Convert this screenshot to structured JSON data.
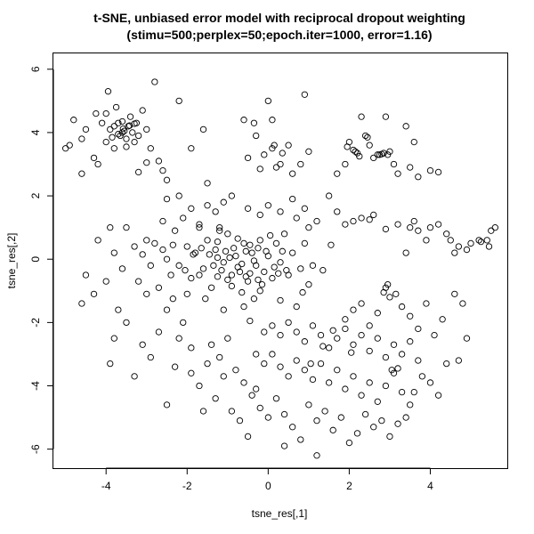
{
  "chart_data": {
    "type": "scatter",
    "title": "t-SNE, unbiased error model with reciprocal dropout weighting",
    "subtitle": "(stimu=500;perplex=50;epoch.iter=1000, error=1.16)",
    "xlabel": "tsne_res[,1]",
    "ylabel": "tsne_res[,2]",
    "xlim": [
      -5.3,
      5.9
    ],
    "ylim": [
      -6.6,
      6.5
    ],
    "xticks": [
      -4,
      -2,
      0,
      2,
      4
    ],
    "yticks": [
      -6,
      -4,
      -2,
      0,
      2,
      4,
      6
    ],
    "xtick_labels": [
      "-4",
      "-2",
      "0",
      "2",
      "4"
    ],
    "ytick_labels": [
      "-6",
      "-4",
      "-2",
      "0",
      "2",
      "4",
      "6"
    ],
    "grid": false,
    "marker": "open-circle",
    "marker_color": "#000000",
    "points": [
      [
        -4.8,
        4.4
      ],
      [
        -4.6,
        3.8
      ],
      [
        -4.5,
        4.1
      ],
      [
        -4.3,
        3.2
      ],
      [
        -4.25,
        4.6
      ],
      [
        -4.1,
        4.3
      ],
      [
        -4.0,
        3.7
      ],
      [
        -3.95,
        5.3
      ],
      [
        -3.9,
        4.1
      ],
      [
        -3.8,
        3.5
      ],
      [
        -3.75,
        4.8
      ],
      [
        -3.7,
        4.3
      ],
      [
        -3.65,
        3.9
      ],
      [
        -3.6,
        4.0
      ],
      [
        -3.55,
        4.05
      ],
      [
        -3.5,
        3.8
      ],
      [
        -3.45,
        4.2
      ],
      [
        -3.4,
        4.5
      ],
      [
        -3.35,
        4.0
      ],
      [
        -3.3,
        3.7
      ],
      [
        -3.25,
        4.3
      ],
      [
        -3.2,
        3.9
      ],
      [
        -3.1,
        4.7
      ],
      [
        -3.0,
        4.1
      ],
      [
        -2.9,
        3.5
      ],
      [
        -2.8,
        5.6
      ],
      [
        -2.7,
        3.1
      ],
      [
        -2.6,
        2.8
      ],
      [
        -3.0,
        3.05
      ],
      [
        -3.5,
        3.55
      ],
      [
        -4.2,
        3.0
      ],
      [
        -4.0,
        4.6
      ],
      [
        -4.6,
        2.7
      ],
      [
        -3.8,
        4.2
      ],
      [
        -3.6,
        4.35
      ],
      [
        -3.85,
        3.85
      ],
      [
        -3.7,
        3.95
      ],
      [
        -3.58,
        4.12
      ],
      [
        -3.42,
        4.22
      ],
      [
        -3.3,
        4.28
      ],
      [
        -5.0,
        3.5
      ],
      [
        -4.9,
        3.6
      ],
      [
        -2.5,
        2.5
      ],
      [
        -1.9,
        3.5
      ],
      [
        -1.6,
        4.1
      ],
      [
        -1.5,
        2.4
      ],
      [
        -2.2,
        5.0
      ],
      [
        -3.2,
        2.75
      ],
      [
        -0.6,
        4.4
      ],
      [
        -0.3,
        3.9
      ],
      [
        0.0,
        5.0
      ],
      [
        0.1,
        4.4
      ],
      [
        0.15,
        3.6
      ],
      [
        0.3,
        3.0
      ],
      [
        0.5,
        3.6
      ],
      [
        -0.1,
        3.3
      ],
      [
        0.2,
        2.9
      ],
      [
        0.6,
        2.7
      ],
      [
        0.9,
        5.2
      ],
      [
        1.0,
        3.4
      ],
      [
        0.8,
        3.0
      ],
      [
        -0.5,
        3.2
      ],
      [
        -0.2,
        2.85
      ],
      [
        0.35,
        3.35
      ],
      [
        0.1,
        3.5
      ],
      [
        -0.35,
        4.3
      ],
      [
        1.7,
        2.7
      ],
      [
        1.9,
        3.0
      ],
      [
        2.0,
        3.7
      ],
      [
        2.1,
        3.45
      ],
      [
        2.2,
        3.35
      ],
      [
        2.3,
        4.5
      ],
      [
        2.4,
        3.9
      ],
      [
        2.5,
        3.6
      ],
      [
        2.6,
        3.2
      ],
      [
        2.7,
        3.3
      ],
      [
        2.75,
        3.3
      ],
      [
        2.85,
        3.35
      ],
      [
        2.9,
        4.5
      ],
      [
        3.0,
        3.4
      ],
      [
        3.1,
        3.0
      ],
      [
        3.2,
        2.7
      ],
      [
        3.4,
        4.2
      ],
      [
        3.6,
        3.7
      ],
      [
        3.5,
        2.9
      ],
      [
        3.7,
        2.6
      ],
      [
        4.0,
        2.8
      ],
      [
        4.2,
        2.75
      ],
      [
        2.15,
        3.4
      ],
      [
        1.95,
        3.55
      ],
      [
        2.45,
        3.85
      ],
      [
        2.8,
        3.32
      ],
      [
        2.95,
        3.3
      ],
      [
        2.25,
        3.25
      ],
      [
        -4.2,
        0.6
      ],
      [
        -4.0,
        -0.7
      ],
      [
        -3.8,
        0.2
      ],
      [
        -3.6,
        -0.3
      ],
      [
        -3.5,
        1.0
      ],
      [
        -3.3,
        0.4
      ],
      [
        -3.2,
        -0.7
      ],
      [
        -3.1,
        0.15
      ],
      [
        -3.0,
        0.6
      ],
      [
        -2.9,
        -0.2
      ],
      [
        -2.8,
        0.5
      ],
      [
        -2.7,
        -0.9
      ],
      [
        -2.6,
        1.2
      ],
      [
        -2.5,
        0.0
      ],
      [
        -2.4,
        -0.5
      ],
      [
        -2.3,
        0.9
      ],
      [
        -2.2,
        -0.2
      ],
      [
        -2.1,
        1.3
      ],
      [
        -2.0,
        0.4
      ],
      [
        -1.9,
        -0.6
      ],
      [
        -1.8,
        0.2
      ],
      [
        -1.7,
        1.1
      ],
      [
        -1.6,
        -0.3
      ],
      [
        -1.5,
        0.6
      ],
      [
        -1.4,
        -0.9
      ],
      [
        -1.3,
        0.3
      ],
      [
        -1.2,
        1.0
      ],
      [
        -1.1,
        -0.1
      ],
      [
        -1.0,
        0.8
      ],
      [
        -0.9,
        -0.5
      ],
      [
        -0.8,
        0.1
      ],
      [
        -0.7,
        -0.4
      ],
      [
        -0.6,
        0.5
      ],
      [
        -0.5,
        -0.7
      ],
      [
        -0.4,
        0.2
      ],
      [
        -0.3,
        -0.2
      ],
      [
        -0.2,
        0.6
      ],
      [
        -0.1,
        -0.4
      ],
      [
        0.0,
        0.1
      ],
      [
        0.1,
        -0.6
      ],
      [
        0.2,
        0.5
      ],
      [
        0.3,
        -0.1
      ],
      [
        0.4,
        0.8
      ],
      [
        0.5,
        -0.5
      ],
      [
        0.6,
        0.2
      ],
      [
        0.7,
        1.3
      ],
      [
        0.8,
        -0.3
      ],
      [
        0.9,
        0.5
      ],
      [
        1.0,
        1.0
      ],
      [
        1.1,
        -0.2
      ],
      [
        -1.35,
        -0.2
      ],
      [
        -1.0,
        -0.65
      ],
      [
        -0.9,
        -0.85
      ],
      [
        -1.25,
        0.55
      ],
      [
        -0.75,
        -0.25
      ],
      [
        -0.55,
        0.25
      ],
      [
        -0.45,
        -0.45
      ],
      [
        -0.25,
        0.35
      ],
      [
        -0.15,
        -0.8
      ],
      [
        0.05,
        0.75
      ],
      [
        -1.9,
        1.6
      ],
      [
        -1.5,
        1.7
      ],
      [
        -1.3,
        1.5
      ],
      [
        -1.1,
        1.8
      ],
      [
        -0.9,
        2.0
      ],
      [
        -0.5,
        1.6
      ],
      [
        -0.2,
        1.4
      ],
      [
        0.0,
        1.7
      ],
      [
        0.3,
        1.5
      ],
      [
        0.6,
        1.9
      ],
      [
        0.9,
        1.6
      ],
      [
        1.2,
        1.2
      ],
      [
        1.5,
        2.0
      ],
      [
        1.7,
        1.5
      ],
      [
        1.9,
        1.1
      ],
      [
        2.1,
        1.2
      ],
      [
        2.3,
        1.3
      ],
      [
        2.5,
        1.25
      ],
      [
        2.6,
        1.4
      ],
      [
        2.9,
        0.95
      ],
      [
        -2.5,
        1.9
      ],
      [
        -2.2,
        2.0
      ],
      [
        -1.7,
        1.0
      ],
      [
        -1.2,
        0.9
      ],
      [
        -3.8,
        -2.5
      ],
      [
        -4.3,
        -1.1
      ],
      [
        -4.6,
        -1.4
      ],
      [
        -3.7,
        -1.6
      ],
      [
        -4.5,
        -0.5
      ],
      [
        -3.9,
        1.0
      ],
      [
        -3.0,
        -1.1
      ],
      [
        -2.5,
        -1.6
      ],
      [
        -2.0,
        -1.1
      ],
      [
        -1.7,
        -0.5
      ],
      [
        -1.1,
        -1.6
      ],
      [
        -0.6,
        -1.5
      ],
      [
        -0.2,
        -1.0
      ],
      [
        0.3,
        -1.3
      ],
      [
        0.7,
        -1.5
      ],
      [
        1.0,
        -0.8
      ],
      [
        3.2,
        1.1
      ],
      [
        3.5,
        1.0
      ],
      [
        3.7,
        0.9
      ],
      [
        4.0,
        1.0
      ],
      [
        4.2,
        1.1
      ],
      [
        4.5,
        0.6
      ],
      [
        4.7,
        0.4
      ],
      [
        4.9,
        0.3
      ],
      [
        5.0,
        0.5
      ],
      [
        5.2,
        0.6
      ],
      [
        5.4,
        0.6
      ],
      [
        5.5,
        0.9
      ],
      [
        5.6,
        1.0
      ],
      [
        4.4,
        0.8
      ],
      [
        3.9,
        0.6
      ],
      [
        4.6,
        0.2
      ],
      [
        3.4,
        0.2
      ],
      [
        5.25,
        0.55
      ],
      [
        5.45,
        0.4
      ],
      [
        3.6,
        1.2
      ],
      [
        -0.1,
        -2.3
      ],
      [
        0.1,
        -2.1
      ],
      [
        0.3,
        -2.4
      ],
      [
        0.5,
        -2.0
      ],
      [
        0.7,
        -2.3
      ],
      [
        0.9,
        -2.6
      ],
      [
        1.1,
        -2.1
      ],
      [
        1.3,
        -2.4
      ],
      [
        1.5,
        -2.8
      ],
      [
        1.7,
        -2.5
      ],
      [
        1.9,
        -2.2
      ],
      [
        2.1,
        -2.7
      ],
      [
        2.3,
        -2.4
      ],
      [
        2.5,
        -2.9
      ],
      [
        2.7,
        -2.5
      ],
      [
        2.9,
        -3.1
      ],
      [
        3.1,
        -2.7
      ],
      [
        3.3,
        -3.0
      ],
      [
        3.5,
        -2.6
      ],
      [
        3.7,
        -3.2
      ],
      [
        -0.3,
        -3.0
      ],
      [
        -0.1,
        -3.3
      ],
      [
        0.1,
        -3.0
      ],
      [
        0.3,
        -3.4
      ],
      [
        0.5,
        -3.7
      ],
      [
        0.7,
        -3.2
      ],
      [
        0.9,
        -3.5
      ],
      [
        1.1,
        -3.8
      ],
      [
        1.3,
        -3.3
      ],
      [
        1.5,
        -3.9
      ],
      [
        1.7,
        -3.5
      ],
      [
        1.9,
        -4.1
      ],
      [
        2.1,
        -3.7
      ],
      [
        2.3,
        -4.3
      ],
      [
        2.5,
        -3.9
      ],
      [
        2.7,
        -4.5
      ],
      [
        2.9,
        -4.0
      ],
      [
        3.1,
        -3.6
      ],
      [
        3.3,
        -4.2
      ],
      [
        3.5,
        -4.6
      ],
      [
        -1.4,
        -2.7
      ],
      [
        -1.2,
        -3.1
      ],
      [
        -1.0,
        -2.5
      ],
      [
        -0.8,
        -3.5
      ],
      [
        -0.6,
        -3.9
      ],
      [
        -0.4,
        -4.3
      ],
      [
        -0.2,
        -4.7
      ],
      [
        0.0,
        -5.0
      ],
      [
        0.2,
        -4.4
      ],
      [
        0.4,
        -4.9
      ],
      [
        0.6,
        -5.3
      ],
      [
        0.8,
        -5.7
      ],
      [
        1.0,
        -4.6
      ],
      [
        1.2,
        -5.1
      ],
      [
        1.4,
        -4.8
      ],
      [
        1.6,
        -5.4
      ],
      [
        1.8,
        -5.0
      ],
      [
        2.0,
        -5.8
      ],
      [
        2.2,
        -5.5
      ],
      [
        2.4,
        -4.9
      ],
      [
        2.6,
        -5.3
      ],
      [
        2.8,
        -5.1
      ],
      [
        3.0,
        -5.6
      ],
      [
        3.2,
        -5.2
      ],
      [
        3.4,
        -5.0
      ],
      [
        3.6,
        -4.2
      ],
      [
        3.8,
        -3.7
      ],
      [
        4.0,
        -3.9
      ],
      [
        4.2,
        -4.3
      ],
      [
        4.4,
        -3.3
      ],
      [
        2.9,
        -0.9
      ],
      [
        3.0,
        -1.2
      ],
      [
        2.85,
        -1.05
      ],
      [
        3.15,
        -1.1
      ],
      [
        2.95,
        -0.8
      ],
      [
        1.9,
        -1.9
      ],
      [
        2.1,
        -1.6
      ],
      [
        2.3,
        -1.4
      ],
      [
        2.5,
        -2.1
      ],
      [
        2.7,
        -1.7
      ],
      [
        3.3,
        -1.5
      ],
      [
        3.5,
        -1.8
      ],
      [
        3.7,
        -2.2
      ],
      [
        3.9,
        -1.4
      ],
      [
        4.1,
        -2.4
      ],
      [
        4.3,
        -1.9
      ],
      [
        4.6,
        -1.1
      ],
      [
        4.8,
        -1.4
      ],
      [
        4.9,
        -2.5
      ],
      [
        4.7,
        -3.2
      ],
      [
        -3.9,
        -3.3
      ],
      [
        -3.5,
        -2.0
      ],
      [
        -3.3,
        -3.7
      ],
      [
        -3.1,
        -2.7
      ],
      [
        -2.9,
        -3.1
      ],
      [
        -2.7,
        -2.3
      ],
      [
        -2.5,
        -4.6
      ],
      [
        -2.3,
        -3.4
      ],
      [
        -2.1,
        -2.0
      ],
      [
        -1.9,
        -2.8
      ],
      [
        -1.7,
        -4.0
      ],
      [
        -1.5,
        -3.3
      ],
      [
        -1.3,
        -4.4
      ],
      [
        -1.1,
        -3.7
      ],
      [
        -0.9,
        -4.8
      ],
      [
        -0.7,
        -5.1
      ],
      [
        -0.5,
        -5.6
      ],
      [
        -0.3,
        -4.1
      ],
      [
        1.2,
        -6.2
      ],
      [
        0.4,
        -5.9
      ],
      [
        -1.6,
        -4.8
      ],
      [
        -1.9,
        -3.6
      ],
      [
        -2.2,
        -2.5
      ],
      [
        -0.45,
        -1.95
      ],
      [
        1.05,
        -3.3
      ],
      [
        1.35,
        -2.75
      ],
      [
        1.6,
        -2.25
      ],
      [
        3.05,
        -3.5
      ],
      [
        3.2,
        -3.45
      ],
      [
        2.05,
        -2.95
      ],
      [
        -2.35,
        -1.25
      ],
      [
        -2.05,
        -0.35
      ],
      [
        -1.55,
        -1.25
      ],
      [
        -1.25,
        -0.55
      ],
      [
        -0.65,
        -1.05
      ],
      [
        -0.35,
        -1.25
      ],
      [
        0.45,
        -0.35
      ],
      [
        0.85,
        -1.05
      ],
      [
        1.35,
        -0.35
      ],
      [
        1.55,
        0.45
      ],
      [
        -0.85,
        0.35
      ],
      [
        -0.65,
        -0.15
      ],
      [
        -0.55,
        -0.55
      ],
      [
        -0.35,
        -0.05
      ],
      [
        -0.25,
        -0.65
      ],
      [
        -0.05,
        0.25
      ],
      [
        0.15,
        -0.25
      ],
      [
        0.25,
        -0.45
      ],
      [
        -0.95,
        0.05
      ],
      [
        -1.05,
        0.25
      ],
      [
        -1.15,
        -0.35
      ],
      [
        -1.25,
        0.05
      ],
      [
        -0.75,
        0.65
      ],
      [
        -0.45,
        0.45
      ],
      [
        0.35,
        0.25
      ],
      [
        -1.45,
        0.15
      ],
      [
        -1.65,
        0.35
      ],
      [
        -1.85,
        0.15
      ],
      [
        -2.35,
        0.45
      ],
      [
        -2.6,
        0.3
      ]
    ]
  }
}
